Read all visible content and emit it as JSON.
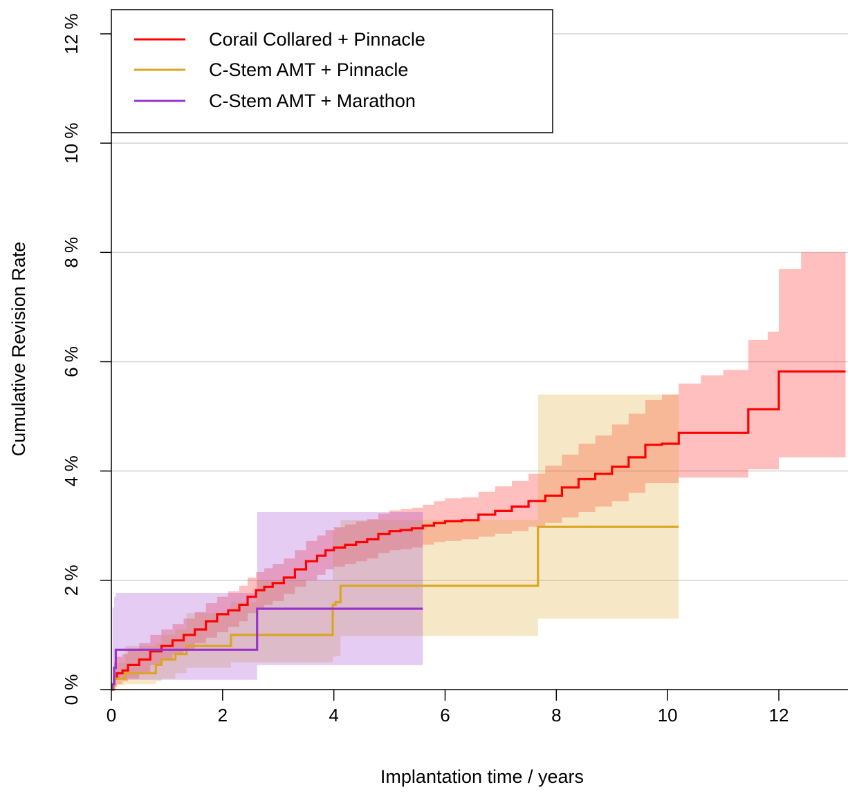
{
  "chart_data": {
    "type": "line",
    "subtype": "step-with-confidence-bands",
    "title": "",
    "xlabel": "Implantation time / years",
    "ylabel": "Cumulative Revision Rate",
    "xlim": [
      0,
      13.2
    ],
    "ylim": [
      0,
      12.6
    ],
    "x_ticks": [
      0,
      2,
      4,
      6,
      8,
      10,
      12
    ],
    "x_tick_labels": [
      "0",
      "2",
      "4",
      "6",
      "8",
      "10",
      "12"
    ],
    "y_ticks": [
      0,
      2,
      4,
      6,
      8,
      10,
      12
    ],
    "y_tick_labels": [
      "0 %",
      "2 %",
      "4 %",
      "6 %",
      "8 %",
      "10 %",
      "12 %"
    ],
    "grid": "horizontal",
    "legend": {
      "position": "top-left",
      "entries": [
        {
          "label": "Corail Collared + Pinnacle",
          "color": "#ff0000"
        },
        {
          "label": "C-Stem AMT + Pinnacle",
          "color": "#daa520"
        },
        {
          "label": "C-Stem AMT + Marathon",
          "color": "#9932cc"
        }
      ]
    },
    "series": [
      {
        "name": "Corail Collared + Pinnacle",
        "color": "#ff0000",
        "band_color": "rgba(255,0,0,0.25)",
        "x": [
          0,
          0.05,
          0.1,
          0.2,
          0.3,
          0.5,
          0.7,
          0.9,
          1.1,
          1.3,
          1.5,
          1.7,
          1.9,
          2.1,
          2.3,
          2.45,
          2.6,
          2.75,
          2.9,
          3.1,
          3.3,
          3.5,
          3.7,
          3.85,
          4.0,
          4.2,
          4.4,
          4.6,
          4.8,
          5.0,
          5.2,
          5.4,
          5.6,
          5.8,
          6.0,
          6.3,
          6.6,
          6.9,
          7.2,
          7.5,
          7.8,
          8.1,
          8.4,
          8.7,
          9.0,
          9.3,
          9.6,
          9.9,
          10.2,
          10.6,
          11.0,
          11.45,
          11.8,
          12.0,
          12.4,
          13.2
        ],
        "y": [
          0,
          0.2,
          0.3,
          0.35,
          0.45,
          0.55,
          0.7,
          0.8,
          0.9,
          1.0,
          1.1,
          1.25,
          1.38,
          1.45,
          1.55,
          1.7,
          1.82,
          1.88,
          1.95,
          2.05,
          2.2,
          2.35,
          2.45,
          2.55,
          2.6,
          2.65,
          2.7,
          2.75,
          2.85,
          2.9,
          2.92,
          2.95,
          3.0,
          3.05,
          3.08,
          3.1,
          3.2,
          3.27,
          3.35,
          3.45,
          3.55,
          3.7,
          3.85,
          3.95,
          4.08,
          4.25,
          4.48,
          4.5,
          4.7,
          4.7,
          4.7,
          5.13,
          5.13,
          5.82,
          5.82,
          5.82
        ],
        "lower": [
          0,
          0.05,
          0.1,
          0.15,
          0.2,
          0.3,
          0.45,
          0.55,
          0.65,
          0.75,
          0.85,
          0.95,
          1.05,
          1.15,
          1.25,
          1.4,
          1.5,
          1.55,
          1.62,
          1.75,
          1.88,
          2.0,
          2.1,
          2.2,
          2.25,
          2.3,
          2.35,
          2.4,
          2.5,
          2.55,
          2.57,
          2.6,
          2.65,
          2.7,
          2.72,
          2.75,
          2.8,
          2.85,
          2.9,
          2.98,
          3.05,
          3.15,
          3.25,
          3.35,
          3.45,
          3.6,
          3.78,
          3.78,
          3.88,
          3.88,
          3.88,
          4.03,
          4.03,
          4.25,
          4.25,
          4.25
        ],
        "upper": [
          0,
          0.5,
          0.6,
          0.65,
          0.75,
          0.85,
          1.0,
          1.1,
          1.2,
          1.3,
          1.42,
          1.58,
          1.7,
          1.8,
          1.9,
          2.05,
          2.15,
          2.22,
          2.3,
          2.4,
          2.55,
          2.72,
          2.82,
          2.92,
          2.97,
          3.02,
          3.08,
          3.12,
          3.22,
          3.28,
          3.3,
          3.33,
          3.38,
          3.45,
          3.5,
          3.52,
          3.62,
          3.72,
          3.82,
          3.95,
          4.1,
          4.3,
          4.5,
          4.65,
          4.85,
          5.05,
          5.3,
          5.4,
          5.6,
          5.75,
          5.85,
          6.4,
          6.55,
          7.7,
          8.0,
          8.85
        ]
      },
      {
        "name": "C-Stem AMT + Pinnacle",
        "color": "#daa520",
        "band_color": "rgba(218,165,32,0.25)",
        "x": [
          0,
          0.05,
          0.25,
          0.8,
          0.9,
          1.15,
          1.35,
          2.15,
          2.6,
          3.98,
          4.03,
          4.12,
          7.67,
          10.2
        ],
        "y": [
          0,
          0.2,
          0.3,
          0.45,
          0.55,
          0.65,
          0.8,
          1.0,
          1.0,
          1.55,
          1.6,
          1.9,
          2.98,
          2.98
        ],
        "lower": [
          0,
          0.08,
          0.1,
          0.15,
          0.2,
          0.3,
          0.4,
          0.5,
          0.5,
          0.6,
          0.62,
          0.98,
          1.3,
          1.3
        ],
        "upper": [
          0,
          0.5,
          0.8,
          0.85,
          1.0,
          1.1,
          1.4,
          1.6,
          2.0,
          2.9,
          2.95,
          3.1,
          5.4,
          6.5
        ]
      },
      {
        "name": "C-Stem AMT + Marathon",
        "color": "#9932cc",
        "band_color": "rgba(153,50,204,0.25)",
        "x": [
          0,
          0.02,
          0.05,
          0.08,
          2.62,
          5.6
        ],
        "y": [
          0,
          0.1,
          0.4,
          0.73,
          1.48,
          1.48
        ],
        "lower": [
          0,
          0.05,
          0.1,
          0.18,
          0.45,
          0.45
        ],
        "upper": [
          0,
          1.5,
          1.7,
          1.77,
          3.25,
          4.6
        ]
      }
    ]
  }
}
